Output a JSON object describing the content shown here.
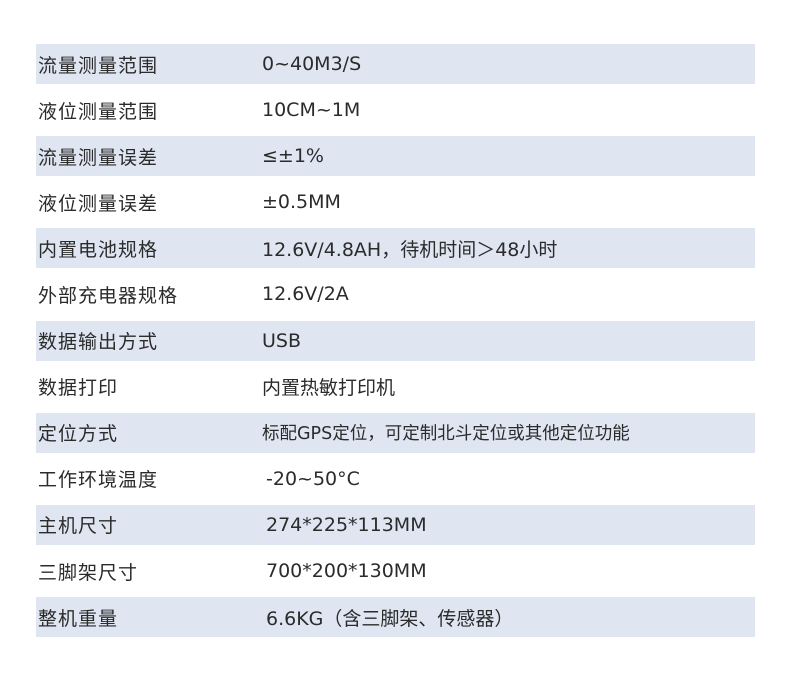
{
  "colors": {
    "shade": "#dfe6f2",
    "text": "#2b2b2b"
  },
  "rows": [
    {
      "label": "流量测量范围",
      "value": "0~40M3/S"
    },
    {
      "label": "液位测量范围",
      "value": "10CM~1M"
    },
    {
      "label": "流量测量误差",
      "value": "≤±1%"
    },
    {
      "label": "液位测量误差",
      "value": "±0.5MM"
    },
    {
      "label": "内置电池规格",
      "value": "12.6V/4.8AH，待机时间＞48小时"
    },
    {
      "label": "外部充电器规格",
      "value": "12.6V/2A"
    },
    {
      "label": "数据输出方式",
      "value": "USB"
    },
    {
      "label": "数据打印",
      "value": "内置热敏打印机"
    },
    {
      "label": "定位方式",
      "value": "标配GPS定位，可定制北斗定位或其他定位功能"
    },
    {
      "label": "工作环境温度",
      "value": "-20~50°C"
    },
    {
      "label": "主机尺寸",
      "value": "274*225*113MM"
    },
    {
      "label": "三脚架尺寸",
      "value": "700*200*130MM"
    },
    {
      "label": "整机重量",
      "value": "6.6KG（含三脚架、传感器）"
    }
  ]
}
